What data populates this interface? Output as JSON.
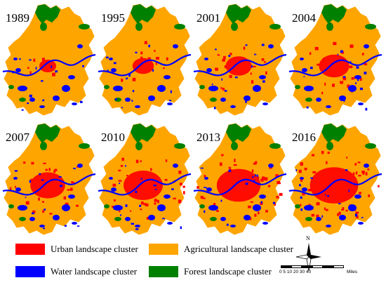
{
  "maps": [
    {
      "year": "1989"
    },
    {
      "year": "1995"
    },
    {
      "year": "2001"
    },
    {
      "year": "2004"
    },
    {
      "year": "2007"
    },
    {
      "year": "2010"
    },
    {
      "year": "2013"
    },
    {
      "year": "2016"
    }
  ],
  "legend": {
    "items": [
      {
        "label": "Urban landscape cluster",
        "color": "#ff0000"
      },
      {
        "label": "Agricultural landscape cluster",
        "color": "#ffa500"
      },
      {
        "label": "Water landscape cluster",
        "color": "#0000ff"
      },
      {
        "label": "Forest landscape cluster",
        "color": "#008000"
      }
    ]
  },
  "compass": {
    "north": "N",
    "icon": "north-arrow-icon"
  },
  "scale_bar": {
    "ticks": "0 5 10   20    30    40",
    "unit": "Miles"
  }
}
